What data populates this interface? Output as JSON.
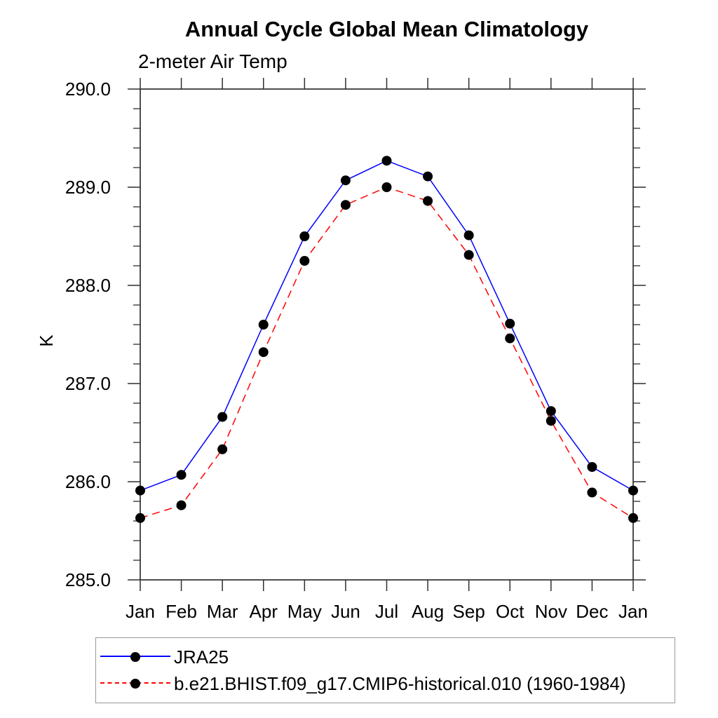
{
  "chart_data": {
    "type": "line",
    "title": "Annual Cycle Global Mean Climatology",
    "subtitle": "2-meter Air Temp",
    "ylabel": "K",
    "xlabel": "",
    "categories": [
      "Jan",
      "Feb",
      "Mar",
      "Apr",
      "May",
      "Jun",
      "Jul",
      "Aug",
      "Sep",
      "Oct",
      "Nov",
      "Dec",
      "Jan"
    ],
    "series": [
      {
        "name": "JRA25",
        "color": "#0000ff",
        "line_style": "solid",
        "marker": "filled-circle",
        "values": [
          285.91,
          286.07,
          286.66,
          287.6,
          288.5,
          289.07,
          289.27,
          289.11,
          288.51,
          287.61,
          286.72,
          286.15,
          285.91
        ]
      },
      {
        "name": "b.e21.BHIST.f09_g17.CMIP6-historical.010 (1960-1984)",
        "color": "#ff0000",
        "line_style": "dashed",
        "marker": "filled-circle",
        "values": [
          285.63,
          285.76,
          286.33,
          287.32,
          288.25,
          288.82,
          289.0,
          288.86,
          288.31,
          287.46,
          286.62,
          285.89,
          285.63
        ]
      }
    ],
    "ylim": [
      285.0,
      290.0
    ],
    "yticks": {
      "major": [
        285.0,
        286.0,
        287.0,
        288.0,
        289.0,
        290.0
      ],
      "major_labels": [
        "285.0",
        "286.0",
        "287.0",
        "288.0",
        "289.0",
        "290.0"
      ],
      "minor_step": 0.2
    },
    "grid": false,
    "marker_color": "#000000",
    "axis_color": "#2f2f2f",
    "legend_position": "bottom-left-box",
    "legend_border_color": "#999999"
  }
}
